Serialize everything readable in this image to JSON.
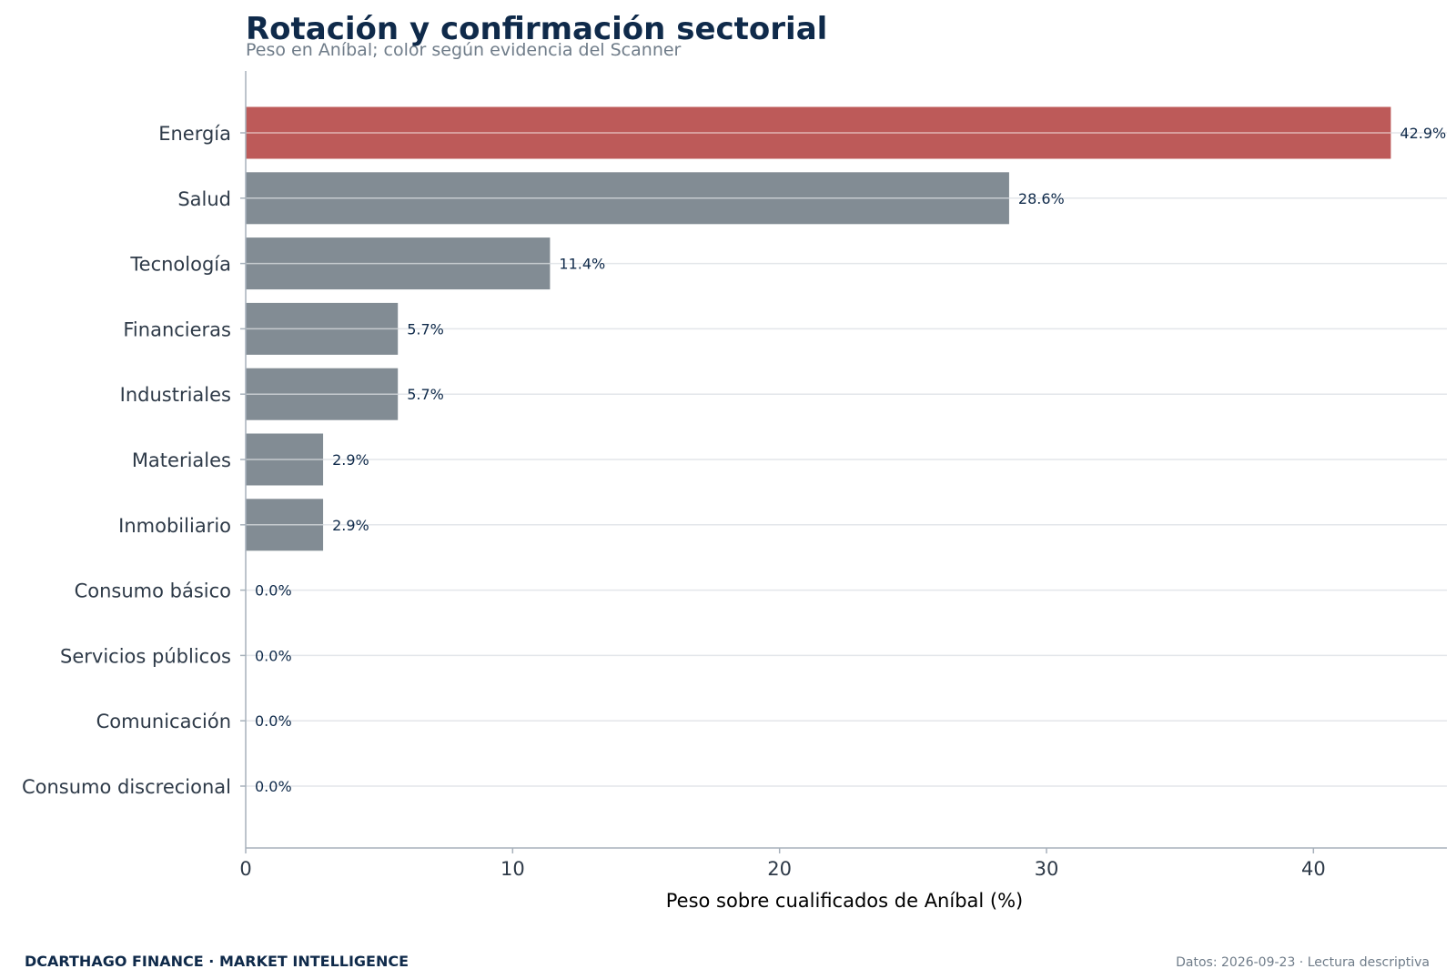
{
  "footer": {
    "brand": "DCARTHAGO FINANCE · MARKET INTELLIGENCE",
    "note": "Datos: 2026-09-23 · Lectura descriptiva"
  },
  "colors": {
    "highlight": "#bd5a59",
    "neutral": "#828c94",
    "title": "#0f2a4a",
    "grid": "#e3e6ea",
    "axis": "#a7b1bb"
  },
  "chart_data": {
    "type": "bar",
    "orientation": "horizontal",
    "title": "Rotación y confirmación sectorial",
    "subtitle": "Peso en Aníbal; color según evidencia del Scanner",
    "xlabel": "Peso sobre cualificados de Aníbal (%)",
    "ylabel": "",
    "xlim": [
      0,
      45
    ],
    "xticks": [
      0,
      10,
      20,
      30,
      40
    ],
    "grid": "horizontal lines at each category",
    "categories": [
      "Energía",
      "Salud",
      "Tecnología",
      "Financieras",
      "Industriales",
      "Materiales",
      "Inmobiliario",
      "Consumo básico",
      "Servicios públicos",
      "Comunicación",
      "Consumo discrecional"
    ],
    "values": [
      42.9,
      28.6,
      11.4,
      5.7,
      5.7,
      2.9,
      2.9,
      0.0,
      0.0,
      0.0,
      0.0
    ],
    "value_labels": [
      "42.9%",
      "28.6%",
      "11.4%",
      "5.7%",
      "5.7%",
      "2.9%",
      "2.9%",
      "0.0%",
      "0.0%",
      "0.0%",
      "0.0%"
    ],
    "highlighted": [
      "Energía"
    ]
  }
}
